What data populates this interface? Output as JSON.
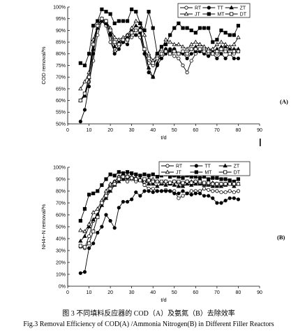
{
  "caption": {
    "line1": "图 3  不同填料反应器的 COD（A）及氨氮（B）去除效率",
    "line2": "Fig.3     Removal Efficiency of COD(A) /Ammonia Nitrogen(B) in Different Filler Reactors"
  },
  "colors": {
    "line": "#000000",
    "background": "#ffffff"
  },
  "chart_data": [
    {
      "type": "line",
      "panel_label": "(A)",
      "xlabel": "t/d",
      "ylabel": "COD removal/%",
      "xlim": [
        0,
        90
      ],
      "ylim": [
        50,
        100
      ],
      "xticks": [
        "0",
        "10",
        "20",
        "30",
        "40",
        "50",
        "60",
        "70",
        "80",
        "90"
      ],
      "yticks": [
        "50%",
        "55%",
        "60%",
        "65%",
        "70%",
        "75%",
        "80%",
        "85%",
        "90%",
        "95%",
        "100%"
      ],
      "grid": false,
      "legend_position": "top-right",
      "series": [
        {
          "name": "RT",
          "marker": "circle-open",
          "x": [
            6,
            8,
            10,
            12,
            14,
            16,
            18,
            20,
            22,
            24,
            26,
            28,
            30,
            32,
            34,
            36,
            38,
            40,
            42,
            44,
            46,
            48,
            50,
            52,
            54,
            56,
            58,
            60,
            62,
            64,
            66,
            68,
            70,
            72,
            74,
            76,
            78,
            80
          ],
          "y": [
            60,
            62,
            68,
            77,
            88,
            94,
            92,
            85,
            81,
            84,
            85,
            88,
            87,
            88,
            87,
            80,
            76,
            75,
            78,
            80,
            82,
            81,
            79,
            78,
            75,
            72,
            77,
            80,
            81,
            82,
            80,
            80,
            80,
            81,
            82,
            80,
            80,
            81
          ]
        },
        {
          "name": "TT",
          "marker": "circle-filled",
          "x": [
            6,
            8,
            10,
            12,
            14,
            16,
            18,
            20,
            22,
            24,
            26,
            28,
            30,
            32,
            34,
            36,
            38,
            40,
            42,
            44,
            46,
            48,
            50,
            52,
            54,
            56,
            58,
            60,
            62,
            64,
            66,
            68,
            70,
            72,
            74,
            76,
            78,
            80
          ],
          "y": [
            51,
            56,
            66,
            80,
            92,
            95,
            93,
            88,
            80,
            82,
            85,
            84,
            89,
            88,
            89,
            80,
            72,
            70,
            75,
            78,
            80,
            82,
            82,
            80,
            80,
            78,
            80,
            81,
            81,
            80,
            79,
            80,
            78,
            80,
            78,
            80,
            78,
            78
          ]
        },
        {
          "name": "ZT",
          "marker": "triangle-filled",
          "x": [
            6,
            8,
            10,
            12,
            14,
            16,
            18,
            20,
            22,
            24,
            26,
            28,
            30,
            32,
            34,
            36,
            38,
            40,
            42,
            44,
            46,
            48,
            50,
            52,
            54,
            56,
            58,
            60,
            62,
            64,
            66,
            68,
            70,
            72,
            74,
            76,
            78,
            80
          ],
          "y": [
            60,
            62,
            70,
            82,
            91,
            94,
            93,
            89,
            83,
            85,
            86,
            87,
            90,
            92,
            91,
            82,
            74,
            70,
            76,
            80,
            82,
            81,
            82,
            80,
            81,
            80,
            82,
            83,
            84,
            83,
            82,
            81,
            82,
            83,
            83,
            82,
            82,
            82
          ]
        },
        {
          "name": "JT",
          "marker": "triangle-open",
          "x": [
            6,
            8,
            10,
            12,
            14,
            16,
            18,
            20,
            22,
            24,
            26,
            28,
            30,
            32,
            34,
            36,
            38,
            40,
            42,
            44,
            46,
            48,
            50,
            52,
            54,
            56,
            58,
            60,
            62,
            64,
            66,
            68,
            70,
            72,
            74,
            76,
            78,
            80
          ],
          "y": [
            65,
            68,
            72,
            86,
            92,
            95,
            94,
            91,
            87,
            86,
            87,
            88,
            91,
            94,
            93,
            88,
            80,
            77,
            80,
            82,
            86,
            85,
            84,
            84,
            83,
            82,
            84,
            85,
            84,
            83,
            82,
            82,
            84,
            85,
            84,
            83,
            84,
            87
          ]
        },
        {
          "name": "MT",
          "marker": "square-filled",
          "x": [
            6,
            8,
            10,
            12,
            14,
            16,
            18,
            20,
            22,
            24,
            26,
            28,
            30,
            32,
            34,
            36,
            38,
            40,
            42,
            44,
            46,
            48,
            50,
            52,
            54,
            56,
            58,
            60,
            62,
            64,
            66,
            68,
            70,
            72,
            74,
            76,
            78,
            80
          ],
          "y": [
            76,
            75,
            80,
            92,
            94,
            99,
            98,
            97,
            93,
            94,
            94,
            94,
            99,
            98,
            93,
            90,
            98,
            91,
            80,
            83,
            84,
            88,
            91,
            93,
            91,
            91,
            90,
            89,
            91,
            91,
            91,
            85,
            86,
            90,
            89,
            88,
            88,
            92
          ]
        },
        {
          "name": "DT",
          "marker": "square-open",
          "x": [
            6,
            8,
            10,
            12,
            14,
            16,
            18,
            20,
            22,
            24,
            26,
            28,
            30,
            32,
            34,
            36,
            38,
            40,
            42,
            44,
            46,
            48,
            50,
            52,
            54,
            56,
            58,
            60,
            62,
            64,
            66,
            68,
            70,
            72,
            74,
            76,
            78,
            80
          ],
          "y": [
            60,
            63,
            70,
            84,
            92,
            95,
            94,
            90,
            85,
            84,
            86,
            86,
            89,
            90,
            90,
            82,
            78,
            76,
            78,
            80,
            81,
            80,
            81,
            80,
            81,
            80,
            82,
            82,
            82,
            81,
            81,
            80,
            81,
            82,
            81,
            80,
            81,
            81
          ]
        }
      ]
    },
    {
      "type": "line",
      "panel_label": "(B)",
      "xlabel": "t/d",
      "ylabel": "NH4+-N removal/%",
      "xlim": [
        0,
        90
      ],
      "ylim": [
        0,
        100
      ],
      "xticks": [
        "0",
        "10",
        "20",
        "30",
        "40",
        "50",
        "60",
        "70",
        "80",
        "90"
      ],
      "yticks": [
        "0%",
        "10%",
        "20%",
        "30%",
        "40%",
        "50%",
        "60%",
        "70%",
        "80%",
        "90%",
        "100%"
      ],
      "grid": false,
      "legend_position": "top-right",
      "series": [
        {
          "name": "RT",
          "marker": "circle-open",
          "x": [
            6,
            8,
            10,
            12,
            14,
            16,
            18,
            20,
            22,
            24,
            26,
            28,
            30,
            32,
            34,
            36,
            38,
            40,
            42,
            44,
            46,
            48,
            50,
            52,
            54,
            56,
            58,
            60,
            62,
            64,
            66,
            68,
            70,
            72,
            74,
            76,
            78,
            80
          ],
          "y": [
            33,
            32,
            42,
            55,
            60,
            70,
            75,
            85,
            88,
            92,
            90,
            88,
            90,
            88,
            89,
            85,
            82,
            82,
            80,
            80,
            81,
            80,
            80,
            74,
            76,
            78,
            80,
            80,
            80,
            82,
            81,
            80,
            80,
            79,
            79,
            80,
            79,
            80
          ]
        },
        {
          "name": "TT",
          "marker": "circle-filled",
          "x": [
            6,
            8,
            10,
            12,
            14,
            16,
            18,
            20,
            22,
            24,
            26,
            28,
            30,
            32,
            34,
            36,
            38,
            40,
            42,
            44,
            46,
            48,
            50,
            52,
            54,
            56,
            58,
            60,
            62,
            64,
            66,
            68,
            70,
            72,
            74,
            76,
            78,
            80
          ],
          "y": [
            11,
            12,
            32,
            36,
            45,
            50,
            60,
            55,
            49,
            66,
            71,
            71,
            73,
            79,
            76,
            80,
            80,
            79,
            80,
            80,
            80,
            80,
            78,
            78,
            80,
            78,
            77,
            78,
            78,
            76,
            76,
            74,
            70,
            70,
            72,
            74,
            74,
            73
          ]
        },
        {
          "name": "ZT",
          "marker": "triangle-filled",
          "x": [
            6,
            8,
            10,
            12,
            14,
            16,
            18,
            20,
            22,
            24,
            26,
            28,
            30,
            32,
            34,
            36,
            38,
            40,
            42,
            44,
            46,
            48,
            50,
            52,
            54,
            56,
            58,
            60,
            62,
            64,
            66,
            68,
            70,
            72,
            74,
            76,
            78,
            80
          ],
          "y": [
            38,
            42,
            50,
            56,
            60,
            68,
            74,
            80,
            85,
            88,
            90,
            91,
            92,
            91,
            90,
            89,
            86,
            86,
            84,
            86,
            85,
            86,
            85,
            84,
            84,
            86,
            85,
            86,
            86,
            85,
            85,
            84,
            84,
            84,
            85,
            86,
            84,
            86
          ]
        },
        {
          "name": "JT",
          "marker": "triangle-open",
          "x": [
            6,
            8,
            10,
            12,
            14,
            16,
            18,
            20,
            22,
            24,
            26,
            28,
            30,
            32,
            34,
            36,
            38,
            40,
            42,
            44,
            46,
            48,
            50,
            52,
            54,
            56,
            58,
            60,
            62,
            64,
            66,
            68,
            70,
            72,
            74,
            76,
            78,
            80
          ],
          "y": [
            47,
            46,
            52,
            62,
            65,
            72,
            80,
            86,
            88,
            92,
            94,
            93,
            92,
            90,
            89,
            88,
            90,
            90,
            88,
            87,
            88,
            87,
            88,
            87,
            86,
            88,
            88,
            88,
            87,
            86,
            86,
            87,
            86,
            86,
            86,
            87,
            86,
            86
          ]
        },
        {
          "name": "MT",
          "marker": "square-filled",
          "x": [
            6,
            8,
            10,
            12,
            14,
            16,
            18,
            20,
            22,
            24,
            26,
            28,
            30,
            32,
            34,
            36,
            38,
            40,
            42,
            44,
            46,
            48,
            50,
            52,
            54,
            56,
            58,
            60,
            62,
            64,
            66,
            68,
            70,
            72,
            74,
            76,
            78,
            80
          ],
          "y": [
            55,
            65,
            77,
            78,
            80,
            85,
            90,
            94,
            93,
            96,
            95,
            96,
            95,
            94,
            93,
            94,
            93,
            94,
            92,
            93,
            94,
            92,
            93,
            92,
            91,
            93,
            92,
            92,
            91,
            92,
            90,
            91,
            91,
            90,
            90,
            89,
            88,
            90
          ]
        },
        {
          "name": "DT",
          "marker": "square-open",
          "x": [
            6,
            8,
            10,
            12,
            14,
            16,
            18,
            20,
            22,
            24,
            26,
            28,
            30,
            32,
            34,
            36,
            38,
            40,
            42,
            44,
            46,
            48,
            50,
            52,
            54,
            56,
            58,
            60,
            62,
            64,
            66,
            68,
            70,
            72,
            74,
            76,
            78,
            80
          ],
          "y": [
            34,
            33,
            36,
            46,
            58,
            70,
            76,
            82,
            86,
            90,
            92,
            92,
            91,
            90,
            89,
            90,
            89,
            88,
            88,
            88,
            88,
            87,
            88,
            88,
            87,
            88,
            87,
            88,
            88,
            87,
            87,
            86,
            86,
            86,
            86,
            86,
            86,
            86
          ]
        }
      ]
    }
  ]
}
